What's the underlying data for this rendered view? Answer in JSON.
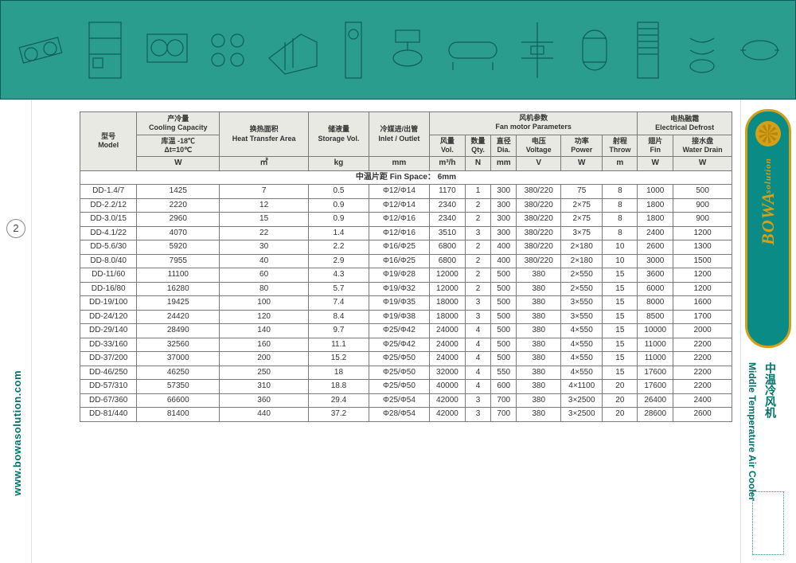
{
  "page_number": "2",
  "url": "www.bowasolution.com",
  "brand": {
    "name": "BOWA",
    "sub": "solution"
  },
  "subtitle_en": "Middle Temperature Air Cooler",
  "subtitle_cn": "中温冷风机",
  "banner": {
    "bg_color": "#2a9d8f",
    "border_color": "#0a5d5d"
  },
  "colors": {
    "header_bg": "#e9e9e4",
    "border": "#7a7a7a",
    "accent": "#00736a",
    "gold": "#d4a017"
  },
  "table": {
    "header": {
      "model": {
        "cn": "型号",
        "en": "Model"
      },
      "cooling": {
        "cn": "产冷量",
        "en": "Cooling Capacity",
        "cond_cn": "库温 -18℃",
        "cond2": "Δt=10℃",
        "unit": "W"
      },
      "area": {
        "cn": "换热面积",
        "en": "Heat Transfer Area",
        "unit": "㎡"
      },
      "storage": {
        "cn": "储液量",
        "en": "Storage Vol.",
        "unit": "kg"
      },
      "inlet": {
        "cn": "冷媒进/出管",
        "en": "Inlet / Outlet",
        "unit": "mm"
      },
      "fan_group": {
        "cn": "风机参数",
        "en": "Fan motor Parameters"
      },
      "fan_vol": {
        "cn": "风量",
        "en": "Vol.",
        "unit": "m³/h"
      },
      "fan_qty": {
        "cn": "数量",
        "en": "Qty.",
        "unit": "N"
      },
      "fan_dia": {
        "cn": "直径",
        "en": "Dia.",
        "unit": "mm"
      },
      "voltage": {
        "cn": "电压",
        "en": "Voltage",
        "unit": "V"
      },
      "power": {
        "cn": "功率",
        "en": "Power",
        "unit": "W"
      },
      "throw": {
        "cn": "射程",
        "en": "Throw",
        "unit": "m"
      },
      "defrost_group": {
        "cn": "电热融霜",
        "en": "Electrical Defrost"
      },
      "fin": {
        "cn": "翅片",
        "en": "Fin",
        "unit": "W"
      },
      "drain": {
        "cn": "接水盘",
        "en": "Water Drain",
        "unit": "W"
      }
    },
    "section_label": "中温片距 Fin Space： 6mm",
    "rows": [
      [
        "DD-1.4/7",
        "1425",
        "7",
        "0.5",
        "Φ12/Φ14",
        "1170",
        "1",
        "300",
        "380/220",
        "75",
        "8",
        "1000",
        "500"
      ],
      [
        "DD-2.2/12",
        "2220",
        "12",
        "0.9",
        "Φ12/Φ14",
        "2340",
        "2",
        "300",
        "380/220",
        "2×75",
        "8",
        "1800",
        "900"
      ],
      [
        "DD-3.0/15",
        "2960",
        "15",
        "0.9",
        "Φ12/Φ16",
        "2340",
        "2",
        "300",
        "380/220",
        "2×75",
        "8",
        "1800",
        "900"
      ],
      [
        "DD-4.1/22",
        "4070",
        "22",
        "1.4",
        "Φ12/Φ16",
        "3510",
        "3",
        "300",
        "380/220",
        "3×75",
        "8",
        "2400",
        "1200"
      ],
      [
        "DD-5.6/30",
        "5920",
        "30",
        "2.2",
        "Φ16/Φ25",
        "6800",
        "2",
        "400",
        "380/220",
        "2×180",
        "10",
        "2600",
        "1300"
      ],
      [
        "DD-8.0/40",
        "7955",
        "40",
        "2.9",
        "Φ16/Φ25",
        "6800",
        "2",
        "400",
        "380/220",
        "2×180",
        "10",
        "3000",
        "1500"
      ],
      [
        "DD-11/60",
        "11100",
        "60",
        "4.3",
        "Φ19/Φ28",
        "12000",
        "2",
        "500",
        "380",
        "2×550",
        "15",
        "3600",
        "1200"
      ],
      [
        "DD-16/80",
        "16280",
        "80",
        "5.7",
        "Φ19/Φ32",
        "12000",
        "2",
        "500",
        "380",
        "2×550",
        "15",
        "6000",
        "1200"
      ],
      [
        "DD-19/100",
        "19425",
        "100",
        "7.4",
        "Φ19/Φ35",
        "18000",
        "3",
        "500",
        "380",
        "3×550",
        "15",
        "8000",
        "1600"
      ],
      [
        "DD-24/120",
        "24420",
        "120",
        "8.4",
        "Φ19/Φ38",
        "18000",
        "3",
        "500",
        "380",
        "3×550",
        "15",
        "8500",
        "1700"
      ],
      [
        "DD-29/140",
        "28490",
        "140",
        "9.7",
        "Φ25/Φ42",
        "24000",
        "4",
        "500",
        "380",
        "4×550",
        "15",
        "10000",
        "2000"
      ],
      [
        "DD-33/160",
        "32560",
        "160",
        "11.1",
        "Φ25/Φ42",
        "24000",
        "4",
        "500",
        "380",
        "4×550",
        "15",
        "11000",
        "2200"
      ],
      [
        "DD-37/200",
        "37000",
        "200",
        "15.2",
        "Φ25/Φ50",
        "24000",
        "4",
        "500",
        "380",
        "4×550",
        "15",
        "11000",
        "2200"
      ],
      [
        "DD-46/250",
        "46250",
        "250",
        "18",
        "Φ25/Φ50",
        "32000",
        "4",
        "550",
        "380",
        "4×550",
        "15",
        "17600",
        "2200"
      ],
      [
        "DD-57/310",
        "57350",
        "310",
        "18.8",
        "Φ25/Φ50",
        "40000",
        "4",
        "600",
        "380",
        "4×1100",
        "20",
        "17600",
        "2200"
      ],
      [
        "DD-67/360",
        "66600",
        "360",
        "29.4",
        "Φ25/Φ54",
        "42000",
        "3",
        "700",
        "380",
        "3×2500",
        "20",
        "26400",
        "2400"
      ],
      [
        "DD-81/440",
        "81400",
        "440",
        "37.2",
        "Φ28/Φ54",
        "42000",
        "3",
        "700",
        "380",
        "3×2500",
        "20",
        "28600",
        "2600"
      ]
    ]
  }
}
